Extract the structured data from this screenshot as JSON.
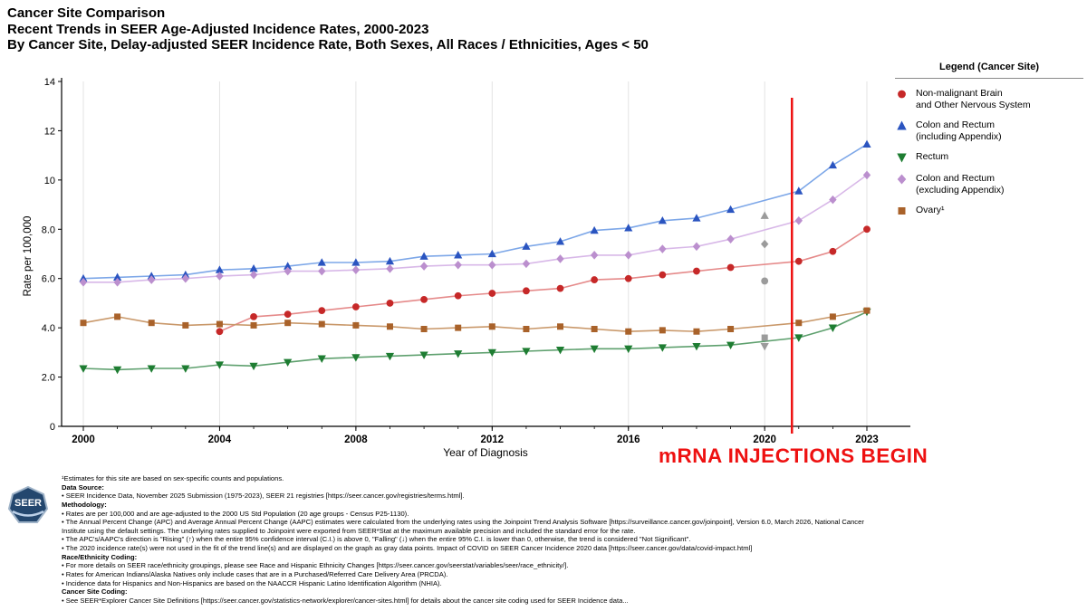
{
  "title": {
    "line1": "Cancer Site Comparison",
    "line2": "Recent Trends in SEER Age-Adjusted Incidence Rates, 2000-2023",
    "line3": "By Cancer Site, Delay-adjusted SEER Incidence Rate, Both Sexes, All Races / Ethnicities, Ages < 50"
  },
  "annotation": {
    "text": "mRNA INJECTIONS BEGIN",
    "year": 2020.8,
    "color": "#ee1111"
  },
  "legend": {
    "title": "Legend (Cancer Site)",
    "items": [
      {
        "marker": "circle",
        "color": "#c62828",
        "lines": [
          "Non-malignant Brain",
          "and Other Nervous System"
        ]
      },
      {
        "marker": "triangle-up",
        "color": "#2a54c0",
        "lines": [
          "Colon and Rectum",
          "(including Appendix)"
        ]
      },
      {
        "marker": "triangle-down",
        "color": "#1e7d32",
        "lines": [
          "Rectum"
        ]
      },
      {
        "marker": "diamond",
        "color": "#bb8fce",
        "lines": [
          "Colon and Rectum",
          "(excluding Appendix)"
        ]
      },
      {
        "marker": "square",
        "color": "#a9622a",
        "lines": [
          "Ovary¹"
        ]
      }
    ]
  },
  "chart_data": {
    "type": "line",
    "title": "Recent Trends in SEER Age-Adjusted Incidence Rates, 2000-2023",
    "subtitle": "By Cancer Site, Delay-adjusted SEER Incidence Rate, Both Sexes, All Races / Ethnicities, Ages < 50",
    "xlabel": "Year of Diagnosis",
    "ylabel": "Rate per 100,000",
    "ylim": [
      0,
      14
    ],
    "grid": "vertical-only",
    "legend_position": "right",
    "years": [
      2000,
      2001,
      2002,
      2003,
      2004,
      2005,
      2006,
      2007,
      2008,
      2009,
      2010,
      2011,
      2012,
      2013,
      2014,
      2015,
      2016,
      2017,
      2018,
      2019,
      2020,
      2021,
      2022,
      2023
    ],
    "y_ticks": [
      {
        "v": 0,
        "label": "0"
      },
      {
        "v": 2,
        "label": "2.0"
      },
      {
        "v": 4,
        "label": "4.0"
      },
      {
        "v": 6,
        "label": "6.0"
      },
      {
        "v": 8,
        "label": "8.0"
      },
      {
        "v": 10,
        "label": "10"
      },
      {
        "v": 12,
        "label": "12"
      },
      {
        "v": 14,
        "label": "14"
      }
    ],
    "x_ticks": [
      {
        "v": 2000,
        "label": "2000"
      },
      {
        "v": 2004,
        "label": "2004"
      },
      {
        "v": 2008,
        "label": "2008"
      },
      {
        "v": 2012,
        "label": "2012"
      },
      {
        "v": 2016,
        "label": "2016"
      },
      {
        "v": 2020,
        "label": "2020"
      },
      {
        "v": 2023,
        "label": "2023"
      }
    ],
    "covid_year": 2020,
    "covid_color": "#9b9b9b",
    "covid_note": "2020 incidence rates not used in trend fit; displayed as gray data points",
    "series": [
      {
        "id": "colon-rectum-incl-appendix",
        "name": "Colon and Rectum (including Appendix)",
        "marker": "triangle-up",
        "color": "#2a54c0",
        "line_color": "#7da7e8",
        "values": [
          6.0,
          6.05,
          6.1,
          6.15,
          6.35,
          6.4,
          6.5,
          6.65,
          6.65,
          6.7,
          6.9,
          6.95,
          7.0,
          7.3,
          7.5,
          7.95,
          8.05,
          8.35,
          8.45,
          8.8,
          8.55,
          9.55,
          10.6,
          11.45
        ]
      },
      {
        "id": "colon-rectum-excl-appendix",
        "name": "Colon and Rectum (excluding Appendix)",
        "marker": "diamond",
        "color": "#bb8fce",
        "line_color": "#d8b8e8",
        "values": [
          5.85,
          5.85,
          5.95,
          6.0,
          6.1,
          6.15,
          6.3,
          6.3,
          6.35,
          6.4,
          6.5,
          6.55,
          6.55,
          6.6,
          6.8,
          6.95,
          6.95,
          7.2,
          7.3,
          7.6,
          7.4,
          8.35,
          9.2,
          10.2
        ]
      },
      {
        "id": "non-malignant-brain",
        "name": "Non-malignant Brain and Other Nervous System",
        "marker": "circle",
        "color": "#c62828",
        "line_color": "#e58a8a",
        "values": [
          null,
          null,
          null,
          null,
          3.85,
          4.45,
          4.55,
          4.7,
          4.85,
          5.0,
          5.15,
          5.3,
          5.4,
          5.5,
          5.6,
          5.95,
          6.0,
          6.15,
          6.3,
          6.45,
          5.9,
          6.7,
          7.1,
          8.0
        ]
      },
      {
        "id": "rectum",
        "name": "Rectum",
        "marker": "triangle-down",
        "color": "#1e7d32",
        "line_color": "#5ea06e",
        "values": [
          2.35,
          2.3,
          2.35,
          2.35,
          2.5,
          2.45,
          2.6,
          2.75,
          2.8,
          2.85,
          2.9,
          2.95,
          3.0,
          3.05,
          3.1,
          3.15,
          3.15,
          3.2,
          3.25,
          3.3,
          3.25,
          3.6,
          4.0,
          4.65
        ]
      },
      {
        "id": "ovary",
        "name": "Ovary¹",
        "marker": "square",
        "color": "#a9622a",
        "line_color": "#c9986a",
        "values": [
          4.2,
          4.45,
          4.2,
          4.1,
          4.15,
          4.1,
          4.2,
          4.15,
          4.1,
          4.05,
          3.95,
          4.0,
          4.05,
          3.95,
          4.05,
          3.95,
          3.85,
          3.9,
          3.85,
          3.95,
          3.6,
          4.2,
          4.45,
          4.7
        ]
      }
    ]
  },
  "footnotes": {
    "lines": [
      {
        "b": false,
        "t": "¹Estimates for this site are based on sex-specific counts and populations."
      },
      {
        "b": true,
        "t": "Data Source:"
      },
      {
        "b": false,
        "t": "• SEER Incidence Data, November 2025 Submission (1975-2023), SEER 21 registries [https://seer.cancer.gov/registries/terms.html]."
      },
      {
        "b": true,
        "t": "Methodology:"
      },
      {
        "b": false,
        "t": "• Rates are per 100,000 and are age-adjusted to the 2000 US Std Population (20 age groups - Census P25-1130)."
      },
      {
        "b": false,
        "t": "• The Annual Percent Change (APC) and Average Annual Percent Change (AAPC) estimates were calculated from the underlying rates using the Joinpoint Trend Analysis Software [https://surveillance.cancer.gov/joinpoint], Version 6.0, March 2026, National Cancer Institute using the default settings. The underlying rates supplied to Joinpoint were exported from SEER*Stat at the maximum available precision and included the standard error for the rate."
      },
      {
        "b": false,
        "t": "• The APC's/AAPC's direction is \"Rising\" (↑) when the entire 95% confidence interval (C.I.) is above 0, \"Falling\" (↓) when the entire 95% C.I. is lower than 0, otherwise, the trend is considered \"Not Significant\"."
      },
      {
        "b": false,
        "t": "• The 2020 incidence rate(s) were not used in the fit of the trend line(s) and are displayed on the graph as gray data points. Impact of COVID on SEER Cancer Incidence 2020 data [https://seer.cancer.gov/data/covid-impact.html]"
      },
      {
        "b": true,
        "t": "Race/Ethnicity Coding:"
      },
      {
        "b": false,
        "t": "• For more details on SEER race/ethnicity groupings, please see Race and Hispanic Ethnicity Changes [https://seer.cancer.gov/seerstat/variables/seer/race_ethnicity/]."
      },
      {
        "b": false,
        "t": "• Rates for American Indians/Alaska Natives only include cases that are in a Purchased/Referred Care Delivery Area (PRCDA)."
      },
      {
        "b": false,
        "t": "• Incidence data for Hispanics and Non-Hispanics are based on the NAACCR Hispanic Latino Identification Algorithm (NHIA)."
      },
      {
        "b": true,
        "t": "Cancer Site Coding:"
      },
      {
        "b": false,
        "t": "• See SEER*Explorer Cancer Site Definitions [https://seer.cancer.gov/statistics-network/explorer/cancer-sites.html] for details about the cancer site coding used for SEER Incidence data..."
      }
    ]
  },
  "footer": {
    "logo_text": "SEER"
  }
}
